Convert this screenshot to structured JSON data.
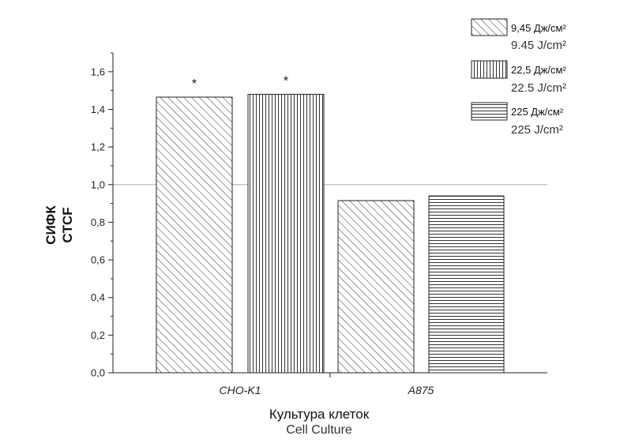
{
  "chart_data": {
    "type": "bar",
    "categories": [
      "CHO-K1",
      "A875"
    ],
    "series": [
      {
        "name": "9,45 Дж/см²",
        "name_en": "9.45 J/cm²",
        "pattern": "diagonal",
        "values": [
          1.465,
          0.915
        ],
        "annotations": [
          "*",
          ""
        ]
      },
      {
        "name": "22,5 Дж/см²",
        "name_en": "22.5 J/cm²",
        "pattern": "vertical",
        "values": [
          1.48,
          null
        ],
        "annotations": [
          "*",
          ""
        ]
      },
      {
        "name": "225 Дж/см²",
        "name_en": "225 J/cm²",
        "pattern": "horizontal",
        "values": [
          null,
          0.94
        ],
        "annotations": [
          "",
          ""
        ]
      }
    ],
    "xlabel": "Культура клеток",
    "xlabel_en": "Cell Culture",
    "ylabel": "СИФК",
    "ylabel_en": "CTCF",
    "ylim": [
      0,
      1.7
    ],
    "yticks": [
      "0,0",
      "0,2",
      "0,4",
      "0,6",
      "0,8",
      "1,0",
      "1,2",
      "1,4",
      "1,6"
    ],
    "ytick_values": [
      0,
      0.2,
      0.4,
      0.6,
      0.8,
      1.0,
      1.2,
      1.4,
      1.6
    ],
    "reference_line": 1.0,
    "grid": false,
    "legend_position": "top-right",
    "colors": {
      "bar_fill": "#ffffff",
      "bar_stroke": "#222222",
      "reference_line": "#bdbdbd",
      "axis": "#222222"
    }
  }
}
